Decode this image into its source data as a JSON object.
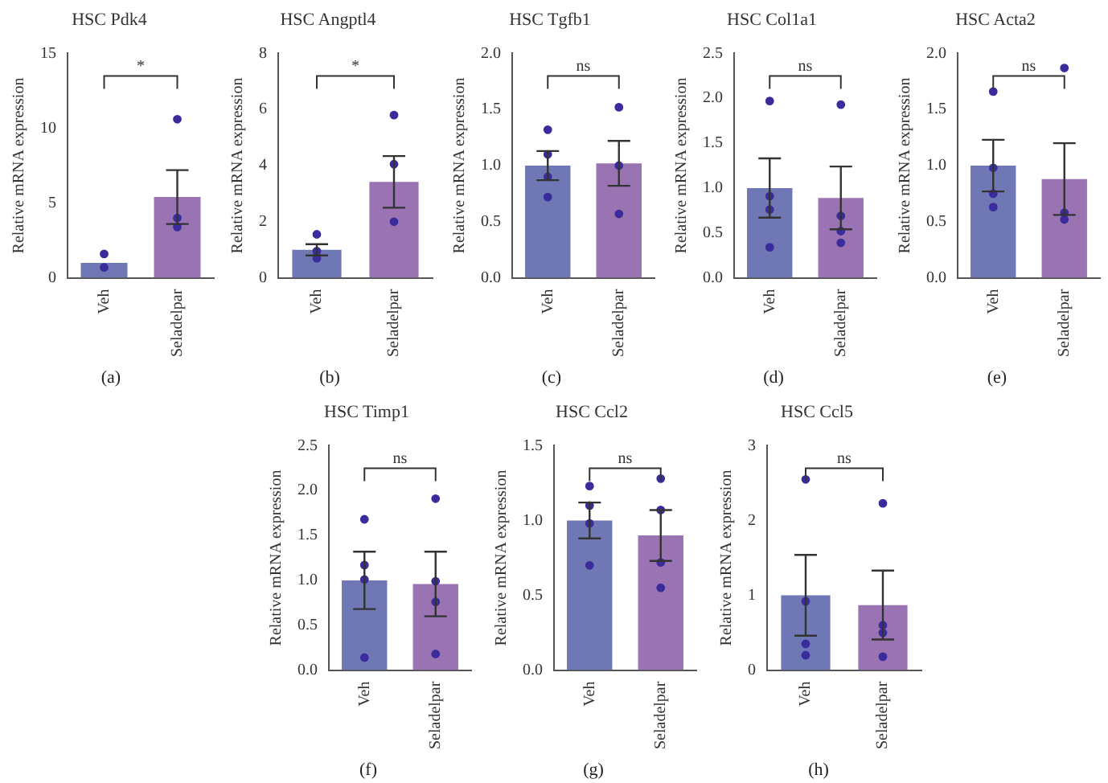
{
  "chart_data": [
    {
      "type": "bar",
      "title": "HSC Pdk4",
      "ylabel": "Relative mRNA expression",
      "categories": [
        "Veh",
        "Seladelpar"
      ],
      "ylim": [
        0,
        15
      ],
      "yticks": [
        0,
        5,
        10,
        15
      ],
      "grid": false,
      "legend": false,
      "annotations": [
        "*",
        "(a)"
      ],
      "series": [
        {
          "type": "bar",
          "colors": [
            "#6f78b4",
            "#9a73b3"
          ],
          "values": [
            1.0,
            5.4
          ],
          "errors": [
            null,
            1.8
          ]
        },
        {
          "type": "scatter",
          "color": "#3a2c9c",
          "x": [
            "Veh",
            "Veh",
            "Veh",
            "Veh",
            "Seladelpar",
            "Seladelpar",
            "Seladelpar",
            "Seladelpar"
          ],
          "values": [
            null,
            1.6,
            0.7,
            null,
            10.6,
            4.0,
            3.4,
            null
          ]
        }
      ]
    },
    {
      "type": "bar",
      "title": "HSC Angptl4",
      "ylabel": "Relative mRNA expression",
      "categories": [
        "Veh",
        "Seladelpar"
      ],
      "ylim": [
        0,
        8
      ],
      "yticks": [
        0,
        2,
        4,
        6,
        8
      ],
      "grid": false,
      "legend": false,
      "annotations": [
        "*",
        "(b)"
      ],
      "series": [
        {
          "type": "bar",
          "colors": [
            "#6f78b4",
            "#9a73b3"
          ],
          "values": [
            1.0,
            3.42
          ],
          "errors": [
            0.2,
            0.92
          ]
        },
        {
          "type": "scatter",
          "color": "#3a2c9c",
          "x": [
            "Veh",
            "Veh",
            "Veh",
            "Veh",
            "Seladelpar",
            "Seladelpar",
            "Seladelpar",
            "Seladelpar"
          ],
          "values": [
            null,
            1.55,
            0.95,
            0.7,
            5.8,
            4.05,
            2.0,
            null
          ]
        }
      ]
    },
    {
      "type": "bar",
      "title": "HSC Tgfb1",
      "ylabel": "Relative mRNA expression",
      "categories": [
        "Veh",
        "Seladelpar"
      ],
      "ylim": [
        0,
        2
      ],
      "yticks": [
        {
          "value": 0,
          "label": "0.0"
        },
        0.5,
        {
          "value": 1,
          "label": "1.0"
        },
        1.5,
        {
          "value": 2,
          "label": "2.0"
        }
      ],
      "grid": false,
      "legend": false,
      "annotations": [
        "ns",
        "(c)"
      ],
      "series": [
        {
          "type": "bar",
          "colors": [
            "#6f78b4",
            "#9a73b3"
          ],
          "values": [
            1.0,
            1.02
          ],
          "errors": [
            0.13,
            0.2
          ]
        },
        {
          "type": "scatter",
          "color": "#3a2c9c",
          "x": [
            "Veh",
            "Veh",
            "Veh",
            "Veh",
            "Seladelpar",
            "Seladelpar",
            "Seladelpar",
            "Seladelpar"
          ],
          "values": [
            1.32,
            1.1,
            0.9,
            0.72,
            1.52,
            1.0,
            null,
            0.57
          ]
        }
      ]
    },
    {
      "type": "bar",
      "title": "HSC Col1a1",
      "ylabel": "Relative mRNA expression",
      "categories": [
        "Veh",
        "Seladelpar"
      ],
      "ylim": [
        0,
        2.5
      ],
      "yticks": [
        {
          "value": 0,
          "label": "0.0"
        },
        0.5,
        {
          "value": 1,
          "label": "1.0"
        },
        1.5,
        {
          "value": 2,
          "label": "2.0"
        },
        2.5
      ],
      "grid": false,
      "legend": false,
      "annotations": [
        "ns",
        "(d)"
      ],
      "series": [
        {
          "type": "bar",
          "colors": [
            "#6f78b4",
            "#9a73b3"
          ],
          "values": [
            1.0,
            0.89
          ],
          "errors": [
            0.33,
            0.35
          ]
        },
        {
          "type": "scatter",
          "color": "#3a2c9c",
          "x": [
            "Veh",
            "Veh",
            "Veh",
            "Veh",
            "Seladelpar",
            "Seladelpar",
            "Seladelpar",
            "Seladelpar"
          ],
          "values": [
            1.97,
            0.91,
            0.76,
            0.34,
            1.93,
            0.69,
            0.52,
            0.39
          ]
        }
      ]
    },
    {
      "type": "bar",
      "title": "HSC Acta2",
      "ylabel": "Relative mRNA expression",
      "categories": [
        "Veh",
        "Seladelpar"
      ],
      "ylim": [
        0,
        2
      ],
      "yticks": [
        {
          "value": 0,
          "label": "0.0"
        },
        0.5,
        {
          "value": 1,
          "label": "1.0"
        },
        1.5,
        {
          "value": 2,
          "label": "2.0"
        }
      ],
      "grid": false,
      "legend": false,
      "annotations": [
        "ns",
        "(e)"
      ],
      "series": [
        {
          "type": "bar",
          "colors": [
            "#6f78b4",
            "#9a73b3"
          ],
          "values": [
            1.0,
            0.88
          ],
          "errors": [
            0.23,
            0.32
          ]
        },
        {
          "type": "scatter",
          "color": "#3a2c9c",
          "x": [
            "Veh",
            "Veh",
            "Veh",
            "Veh",
            "Seladelpar",
            "Seladelpar",
            "Seladelpar",
            "Seladelpar"
          ],
          "values": [
            1.66,
            0.98,
            0.75,
            0.63,
            1.87,
            0.58,
            0.52,
            null
          ]
        }
      ]
    },
    {
      "type": "bar",
      "title": "HSC Timp1",
      "ylabel": "Relative mRNA expression",
      "categories": [
        "Veh",
        "Seladelpar"
      ],
      "ylim": [
        0,
        2.5
      ],
      "yticks": [
        {
          "value": 0,
          "label": "0.0"
        },
        0.5,
        {
          "value": 1,
          "label": "1.0"
        },
        1.5,
        {
          "value": 2,
          "label": "2.0"
        },
        2.5
      ],
      "grid": false,
      "legend": false,
      "annotations": [
        "ns",
        "(f)"
      ],
      "series": [
        {
          "type": "bar",
          "colors": [
            "#6f78b4",
            "#9a73b3"
          ],
          "values": [
            1.0,
            0.96
          ],
          "errors": [
            0.32,
            0.36
          ]
        },
        {
          "type": "scatter",
          "color": "#3a2c9c",
          "x": [
            "Veh",
            "Veh",
            "Veh",
            "Veh",
            "Seladelpar",
            "Seladelpar",
            "Seladelpar",
            "Seladelpar"
          ],
          "values": [
            1.68,
            1.17,
            1.01,
            0.14,
            1.91,
            0.99,
            0.76,
            0.18
          ]
        }
      ]
    },
    {
      "type": "bar",
      "title": "HSC Ccl2",
      "ylabel": "Relative mRNA expression",
      "categories": [
        "Veh",
        "Seladelpar"
      ],
      "ylim": [
        0,
        1.5
      ],
      "yticks": [
        {
          "value": 0,
          "label": "0.0"
        },
        0.5,
        {
          "value": 1,
          "label": "1.0"
        },
        1.5
      ],
      "grid": false,
      "legend": false,
      "annotations": [
        "ns",
        "(g)"
      ],
      "series": [
        {
          "type": "bar",
          "colors": [
            "#6f78b4",
            "#9a73b3"
          ],
          "values": [
            1.0,
            0.9
          ],
          "errors": [
            0.12,
            0.17
          ]
        },
        {
          "type": "scatter",
          "color": "#3a2c9c",
          "x": [
            "Veh",
            "Veh",
            "Veh",
            "Veh",
            "Seladelpar",
            "Seladelpar",
            "Seladelpar",
            "Seladelpar"
          ],
          "values": [
            1.23,
            1.1,
            0.98,
            0.7,
            1.28,
            1.07,
            0.72,
            0.55
          ]
        }
      ]
    },
    {
      "type": "bar",
      "title": "HSC Ccl5",
      "ylabel": "Relative mRNA expression",
      "categories": [
        "Veh",
        "Seladelpar"
      ],
      "ylim": [
        0,
        3
      ],
      "yticks": [
        0,
        1,
        2,
        3
      ],
      "grid": false,
      "legend": false,
      "annotations": [
        "ns",
        "(h)"
      ],
      "series": [
        {
          "type": "bar",
          "colors": [
            "#6f78b4",
            "#9a73b3"
          ],
          "values": [
            1.0,
            0.87
          ],
          "errors": [
            0.54,
            0.46
          ]
        },
        {
          "type": "scatter",
          "color": "#3a2c9c",
          "x": [
            "Veh",
            "Veh",
            "Veh",
            "Veh",
            "Seladelpar",
            "Seladelpar",
            "Seladelpar",
            "Seladelpar"
          ],
          "values": [
            2.55,
            0.92,
            0.35,
            0.2,
            2.23,
            0.6,
            0.5,
            0.18
          ]
        }
      ]
    }
  ]
}
